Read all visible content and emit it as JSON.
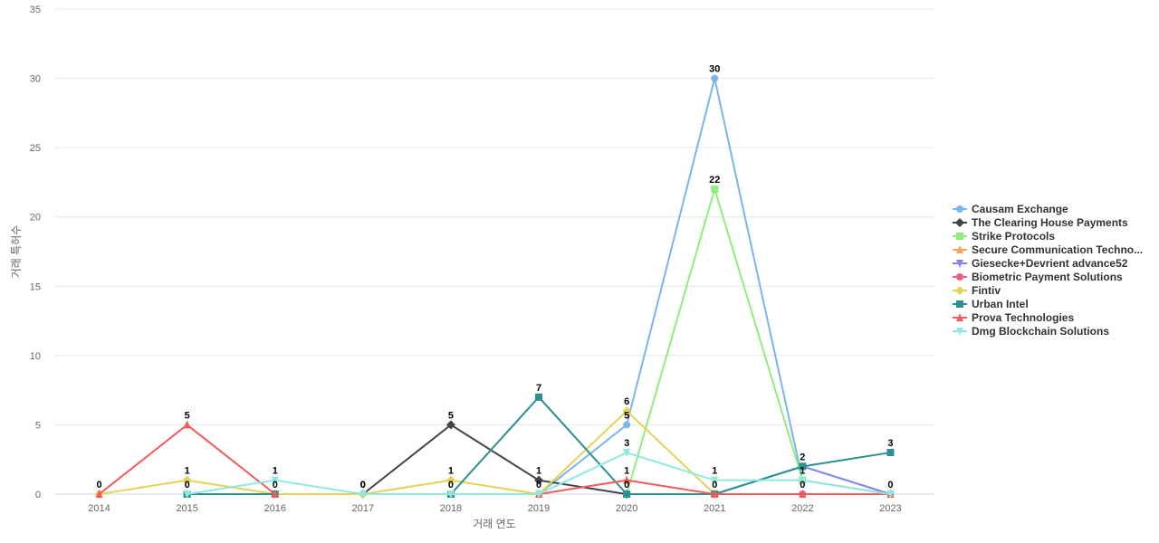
{
  "chart_data": {
    "type": "line",
    "xlabel": "거래 연도",
    "ylabel": "거래 특허수",
    "ylim": [
      0,
      35
    ],
    "yticks": [
      0,
      5,
      10,
      15,
      20,
      25,
      30,
      35
    ],
    "categories": [
      "2014",
      "2015",
      "2016",
      "2017",
      "2018",
      "2019",
      "2020",
      "2021",
      "2022",
      "2023"
    ],
    "grid": true,
    "legend_position": "right",
    "series": [
      {
        "name": "Causam Exchange",
        "color": "#7cb5ec",
        "marker": "circle",
        "values": [
          null,
          null,
          null,
          null,
          null,
          0,
          5,
          30,
          1,
          0
        ],
        "labels": [
          null,
          null,
          null,
          null,
          null,
          null,
          5,
          30,
          null,
          null
        ]
      },
      {
        "name": "The Clearing House Payments",
        "color": "#434348",
        "marker": "diamond",
        "values": [
          null,
          null,
          null,
          0,
          5,
          1,
          0,
          null,
          null,
          null
        ],
        "labels": [
          null,
          null,
          null,
          0,
          5,
          1,
          0,
          null,
          null,
          null
        ]
      },
      {
        "name": "Strike Protocols",
        "color": "#90ed7d",
        "marker": "square",
        "values": [
          null,
          null,
          null,
          null,
          null,
          null,
          0,
          22,
          1,
          null
        ],
        "labels": [
          null,
          null,
          null,
          null,
          null,
          null,
          null,
          22,
          null,
          null
        ]
      },
      {
        "name": "Secure Communication Techno...",
        "color": "#f7a35c",
        "marker": "triangle",
        "values": [
          null,
          null,
          null,
          null,
          null,
          null,
          null,
          null,
          null,
          0
        ],
        "labels": [
          null,
          null,
          null,
          null,
          null,
          null,
          null,
          null,
          null,
          null
        ]
      },
      {
        "name": "Giesecke+Devrient advance52",
        "color": "#8085e9",
        "marker": "triangle-down",
        "values": [
          null,
          null,
          null,
          null,
          null,
          null,
          null,
          0,
          2,
          0
        ],
        "labels": [
          null,
          null,
          null,
          null,
          null,
          null,
          null,
          null,
          null,
          null
        ]
      },
      {
        "name": "Biometric Payment Solutions",
        "color": "#f15c80",
        "marker": "circle",
        "values": [
          null,
          null,
          null,
          null,
          null,
          0,
          null,
          null,
          0,
          null
        ],
        "labels": [
          null,
          null,
          null,
          null,
          null,
          null,
          null,
          null,
          0,
          null
        ]
      },
      {
        "name": "Fintiv",
        "color": "#e4d354",
        "marker": "diamond",
        "values": [
          0,
          1,
          0,
          0,
          1,
          0,
          6,
          0,
          null,
          null
        ],
        "labels": [
          null,
          1,
          null,
          null,
          1,
          null,
          6,
          null,
          null,
          null
        ]
      },
      {
        "name": "Urban Intel",
        "color": "#2b908f",
        "marker": "square",
        "values": [
          null,
          0,
          0,
          null,
          0,
          7,
          0,
          0,
          2,
          3
        ],
        "labels": [
          null,
          0,
          0,
          null,
          0,
          7,
          null,
          0,
          2,
          3
        ]
      },
      {
        "name": "Prova Technologies",
        "color": "#f45b5b",
        "marker": "triangle",
        "values": [
          0,
          5,
          0,
          null,
          null,
          0,
          1,
          0,
          0,
          0
        ],
        "labels": [
          0,
          5,
          null,
          null,
          null,
          0,
          1,
          null,
          null,
          0
        ]
      },
      {
        "name": "Dmg Blockchain Solutions",
        "color": "#91e8e1",
        "marker": "triangle-down",
        "values": [
          null,
          0,
          1,
          0,
          0,
          0,
          3,
          1,
          1,
          0
        ],
        "labels": [
          null,
          null,
          1,
          0,
          null,
          null,
          3,
          1,
          1,
          null
        ]
      }
    ]
  }
}
